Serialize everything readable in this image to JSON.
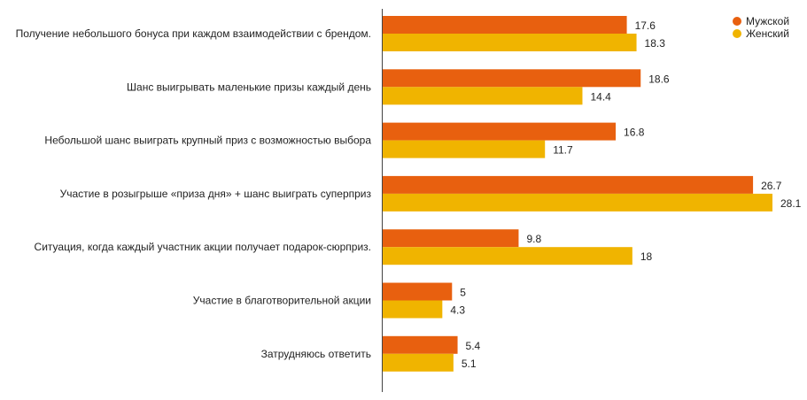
{
  "chart_data": {
    "type": "bar",
    "orientation": "horizontal",
    "title": "",
    "xlabel": "",
    "ylabel": "",
    "xlim": [
      0,
      28.1
    ],
    "grid": false,
    "legend_position": "top-right",
    "categories": [
      "Получение небольшого бонуса при каждом взаимодействии с брендом.",
      "Шанс выигрывать маленькие призы каждый день",
      "Небольшой шанс выиграть крупный приз с возможностью выбора",
      "Участие в розыгрыше «приза дня» + шанс выиграть суперприз",
      "Ситуация, когда каждый участник акции получает подарок-сюрприз.",
      "Участие в благотворительной акции",
      "Затрудняюсь ответить"
    ],
    "series": [
      {
        "name": "Мужской",
        "color": "#e8600f",
        "values": [
          17.6,
          18.6,
          16.8,
          26.7,
          9.8,
          5,
          5.4
        ]
      },
      {
        "name": "Женский",
        "color": "#f0b400",
        "values": [
          18.3,
          14.4,
          11.7,
          28.1,
          18,
          4.3,
          5.1
        ]
      }
    ]
  }
}
